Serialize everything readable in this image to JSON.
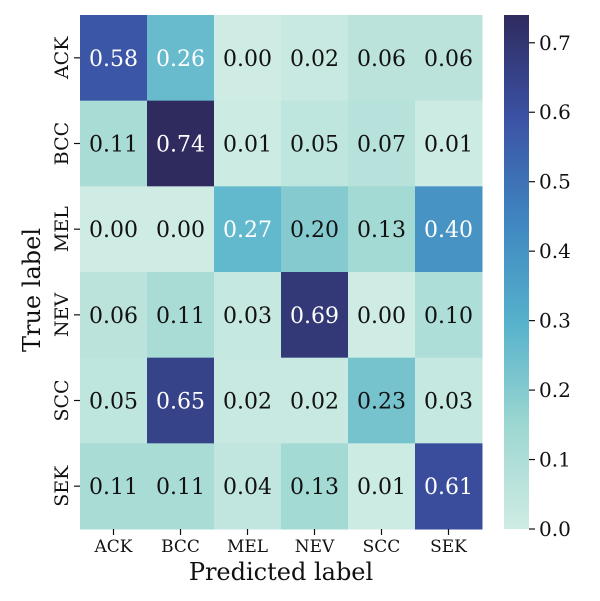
{
  "chart_data": {
    "type": "heatmap",
    "title": "",
    "xlabel": "Predicted label",
    "ylabel": "True label",
    "x_categories": [
      "ACK",
      "BCC",
      "MEL",
      "NEV",
      "SCC",
      "SEK"
    ],
    "y_categories": [
      "ACK",
      "BCC",
      "MEL",
      "NEV",
      "SCC",
      "SEK"
    ],
    "values": [
      [
        0.58,
        0.26,
        0.0,
        0.02,
        0.06,
        0.06
      ],
      [
        0.11,
        0.74,
        0.01,
        0.05,
        0.07,
        0.01
      ],
      [
        0.0,
        0.0,
        0.27,
        0.2,
        0.13,
        0.4
      ],
      [
        0.06,
        0.11,
        0.03,
        0.69,
        0.0,
        0.1
      ],
      [
        0.05,
        0.65,
        0.02,
        0.02,
        0.23,
        0.03
      ],
      [
        0.11,
        0.11,
        0.04,
        0.13,
        0.01,
        0.61
      ]
    ],
    "value_format": "0.00",
    "colorbar": {
      "range": [
        0.0,
        0.74
      ],
      "ticks": [
        0.0,
        0.1,
        0.2,
        0.3,
        0.4,
        0.5,
        0.6,
        0.7
      ],
      "tick_labels": [
        "0.0",
        "0.1",
        "0.2",
        "0.3",
        "0.4",
        "0.5",
        "0.6",
        "0.7"
      ],
      "colormap": [
        "#cfece4",
        "#9dd7d1",
        "#56b2cc",
        "#3f86c0",
        "#3b52a4",
        "#2f2b5f"
      ]
    },
    "text_color_dark": "#111111",
    "text_color_light": "#ffffff",
    "grid": false,
    "legend": "none"
  }
}
